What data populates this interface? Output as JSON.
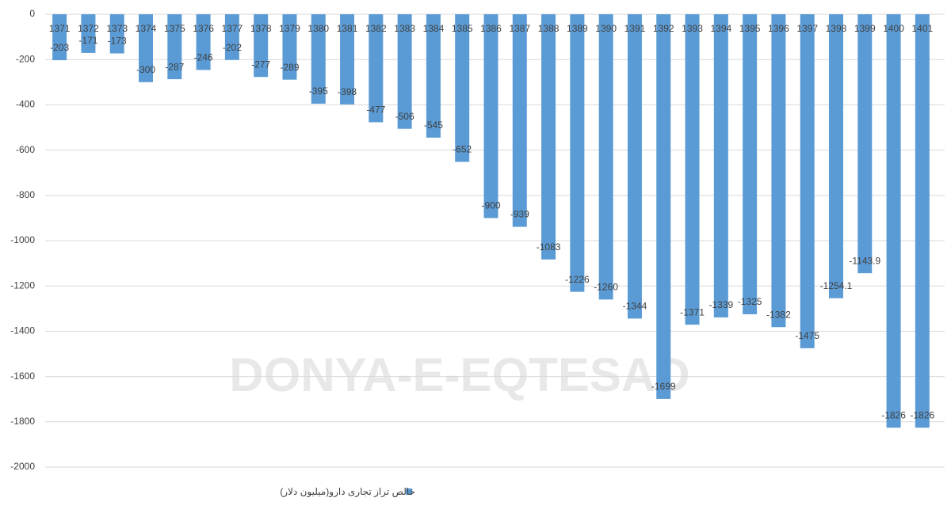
{
  "watermark": "DONYA-E-EQTESAD",
  "chart_data": {
    "type": "bar",
    "categories": [
      "1371",
      "1372",
      "1373",
      "1374",
      "1375",
      "1376",
      "1377",
      "1378",
      "1379",
      "1380",
      "1381",
      "1382",
      "1383",
      "1384",
      "1385",
      "1386",
      "1387",
      "1388",
      "1389",
      "1390",
      "1391",
      "1392",
      "1393",
      "1394",
      "1395",
      "1396",
      "1397",
      "1398",
      "1399",
      "1400",
      "1401"
    ],
    "series": [
      {
        "name": "خالص تراز تجاری دارو(میلیون دلار)",
        "color": "#5b9bd5",
        "values": [
          -203,
          -171,
          -173,
          -300,
          -287,
          -246,
          -202,
          -277,
          -289,
          -395,
          -398,
          -477,
          -506,
          -545,
          -652,
          -900,
          -939,
          -1083,
          -1226,
          -1260,
          -1344,
          -1699,
          -1371,
          -1339,
          -1325,
          -1382,
          -1475,
          -1254.1,
          -1143.9,
          -1826,
          -1826
        ]
      }
    ],
    "ylim": [
      -2000,
      0
    ],
    "yticks": [
      0,
      -200,
      -400,
      -600,
      -800,
      -1000,
      -1200,
      -1400,
      -1600,
      -1800,
      -2000
    ],
    "grid": true,
    "legend": "bottom"
  }
}
